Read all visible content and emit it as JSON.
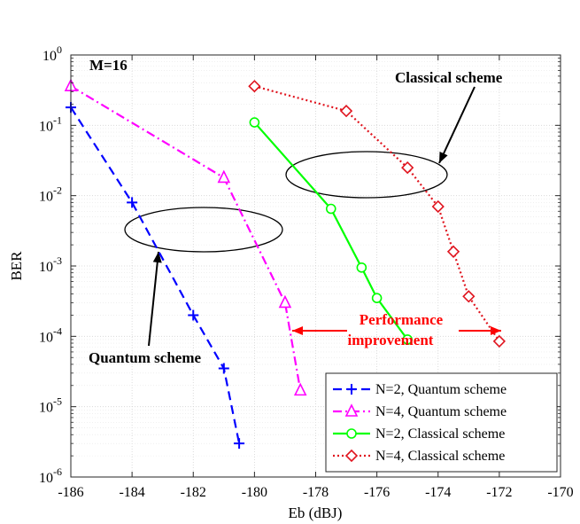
{
  "chart_data": {
    "type": "line",
    "xlabel": "Eb (dBJ)",
    "ylabel": "BER",
    "xlim": [
      -186,
      -170
    ],
    "ylim": [
      1e-06,
      1
    ],
    "y_scale": "log",
    "grid": true,
    "x_ticks": [
      "-186",
      "-184",
      "-182",
      "-180",
      "-178",
      "-176",
      "-174",
      "-172",
      "-170"
    ],
    "y_ticks": [
      {
        "base": "10",
        "exp": "0"
      },
      {
        "base": "10",
        "exp": "-1"
      },
      {
        "base": "10",
        "exp": "-2"
      },
      {
        "base": "10",
        "exp": "-3"
      },
      {
        "base": "10",
        "exp": "-4"
      },
      {
        "base": "10",
        "exp": "-5"
      },
      {
        "base": "10",
        "exp": "-6"
      }
    ],
    "legend_position": "bottom-right",
    "series": [
      {
        "name": "N=2, Quantum scheme",
        "color": "#0000ff",
        "marker": "plus",
        "line": "dashed",
        "x": [
          -186,
          -184,
          -182,
          -181,
          -180.5
        ],
        "y": [
          0.18,
          0.008,
          0.0002,
          3.5e-05,
          3e-06
        ]
      },
      {
        "name": "N=4, Quantum scheme",
        "color": "#ff00ff",
        "marker": "triangle",
        "line": "dashdot",
        "x": [
          -186,
          -181,
          -179,
          -178.5
        ],
        "y": [
          0.36,
          0.018,
          0.0003,
          1.7e-05
        ]
      },
      {
        "name": "N=2, Classical scheme",
        "color": "#00ff00",
        "marker": "circle",
        "line": "solid",
        "x": [
          -180,
          -177.5,
          -176.5,
          -176,
          -175
        ],
        "y": [
          0.11,
          0.0065,
          0.00095,
          0.00035,
          9e-05
        ]
      },
      {
        "name": "N=4, Classical scheme",
        "color": "#e0141e",
        "marker": "diamond",
        "line": "dotted",
        "x": [
          -180,
          -177,
          -175,
          -174,
          -173.5,
          -173,
          -172
        ],
        "y": [
          0.36,
          0.16,
          0.025,
          0.007,
          0.0016,
          0.00037,
          8.5e-05
        ]
      }
    ],
    "annotations": {
      "m_label": "M=16",
      "classical_label": "Classical scheme",
      "quantum_label": "Quantum scheme",
      "performance_line1": "Performance",
      "performance_line2": "improvement",
      "performance_color": "#ff0000"
    }
  }
}
